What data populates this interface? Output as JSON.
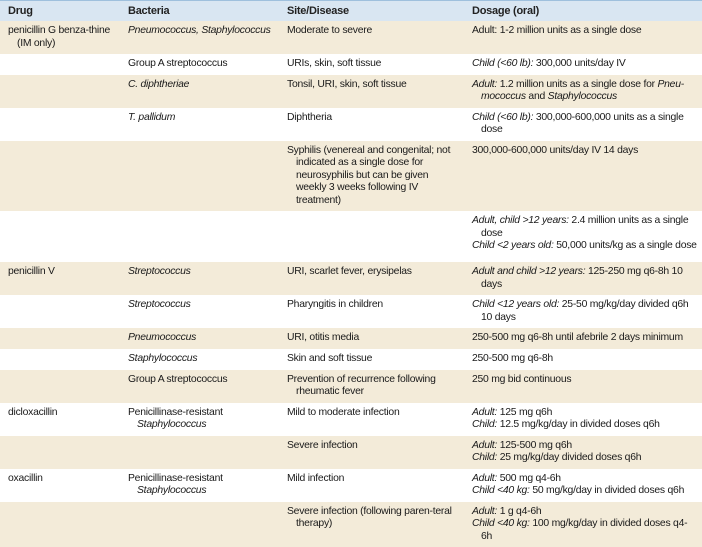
{
  "table": {
    "headers": [
      "Drug",
      "Bacteria",
      "Site/Disease",
      "Dosage (oral)"
    ],
    "colors": {
      "header_bg": "#d9e6f2",
      "shade_bg": "#f3ebd9"
    },
    "rows": [
      {
        "h": 33,
        "shade": true,
        "drug": [
          [
            {
              "t": "penicillin G benza-thine (IM only)"
            }
          ]
        ],
        "bacteria": [
          [
            {
              "i": "Pneumococcus, Staphylococcus"
            }
          ]
        ],
        "site": [
          [
            {
              "t": "Moderate to severe"
            }
          ]
        ],
        "dosage": [
          [
            {
              "t": "Adult: 1-2 million units as a single dose"
            }
          ]
        ]
      },
      {
        "h": 20,
        "shade": false,
        "drug": [],
        "bacteria": [
          [
            {
              "t": "Group A streptococcus"
            }
          ]
        ],
        "site": [
          [
            {
              "t": "URIs, skin, soft tissue"
            }
          ]
        ],
        "dosage": [
          [
            {
              "i": "Child (<60 lb):"
            },
            {
              "t": " 300,000 units/day IV"
            }
          ]
        ]
      },
      {
        "h": 31,
        "shade": true,
        "drug": [],
        "bacteria": [
          [
            {
              "i": "C. diphtheriae"
            }
          ]
        ],
        "site": [
          [
            {
              "t": "Tonsil, URI, skin, soft tissue"
            }
          ]
        ],
        "dosage": [
          [
            {
              "i": "Adult:"
            },
            {
              "t": " 1.2 million units as a single dose for "
            },
            {
              "i": "Pneu-mococcus"
            },
            {
              "t": " and "
            },
            {
              "i": "Staphylococcus"
            }
          ]
        ]
      },
      {
        "h": 33,
        "shade": false,
        "drug": [],
        "bacteria": [
          [
            {
              "i": "T. pallidum"
            }
          ]
        ],
        "site": [
          [
            {
              "t": "Diphtheria"
            }
          ]
        ],
        "dosage": [
          [
            {
              "i": "Child (<60 lb):"
            },
            {
              "t": " 300,000-600,000 units as a single dose"
            }
          ]
        ]
      },
      {
        "h": 70,
        "shade": true,
        "drug": [],
        "bacteria": [],
        "site": [
          [
            {
              "t": "Syphilis (venereal and congenital; not indicated as a single dose for neurosyphilis but can be given weekly 3 weeks following IV treatment)"
            }
          ]
        ],
        "dosage": [
          [
            {
              "t": "300,000-600,000 units/day IV 14 days"
            }
          ]
        ]
      },
      {
        "h": 51,
        "shade": false,
        "drug": [],
        "bacteria": [],
        "site": [],
        "dosage": [
          [
            {
              "i": "Adult, child >12 years:"
            },
            {
              "t": " 2.4 million units as a single dose"
            }
          ],
          [
            {
              "i": "Child <2 years old:"
            },
            {
              "t": " 50,000 units/kg as a single dose"
            }
          ]
        ]
      },
      {
        "h": 32,
        "shade": true,
        "drug": [
          [
            {
              "t": "penicillin V"
            }
          ]
        ],
        "bacteria": [
          [
            {
              "i": "Streptococcus"
            }
          ]
        ],
        "site": [
          [
            {
              "t": "URI, scarlet fever, erysipelas"
            }
          ]
        ],
        "dosage": [
          [
            {
              "i": "Adult and child >12 years:"
            },
            {
              "t": " 125-250 mg q6-8h 10 days"
            }
          ]
        ]
      },
      {
        "h": 25,
        "shade": false,
        "drug": [],
        "bacteria": [
          [
            {
              "i": "Streptococcus"
            }
          ]
        ],
        "site": [
          [
            {
              "t": "Pharyngitis in children"
            }
          ]
        ],
        "dosage": [
          [
            {
              "i": "Child <12 years old:"
            },
            {
              "t": " 25-50 mg/kg/day divided q6h 10 days"
            }
          ]
        ]
      },
      {
        "h": 21,
        "shade": true,
        "drug": [],
        "bacteria": [
          [
            {
              "i": "Pneumococcus"
            }
          ]
        ],
        "site": [
          [
            {
              "t": "URI, otitis media"
            }
          ]
        ],
        "dosage": [
          [
            {
              "t": "250-500 mg q6-8h until afebrile 2 days minimum"
            }
          ]
        ]
      },
      {
        "h": 19,
        "shade": false,
        "drug": [],
        "bacteria": [
          [
            {
              "i": "Staphylococcus"
            }
          ]
        ],
        "site": [
          [
            {
              "t": "Skin and soft tissue"
            }
          ]
        ],
        "dosage": [
          [
            {
              "t": "250-500 mg q6-8h"
            }
          ]
        ]
      },
      {
        "h": 30,
        "shade": true,
        "drug": [],
        "bacteria": [
          [
            {
              "t": "Group A streptococcus"
            }
          ]
        ],
        "site": [
          [
            {
              "t": "Prevention of recurrence following rheumatic fever"
            }
          ]
        ],
        "dosage": [
          [
            {
              "t": "250 mg bid continuous"
            }
          ]
        ]
      },
      {
        "h": 33,
        "shade": false,
        "drug": [
          [
            {
              "t": "dicloxacillin"
            }
          ]
        ],
        "bacteria": [
          [
            {
              "t": "Penicillinase-resistant "
            },
            {
              "i": "Staphylococcus"
            }
          ]
        ],
        "site": [
          [
            {
              "t": "Mild to moderate infection"
            }
          ]
        ],
        "dosage": [
          [
            {
              "i": "Adult:"
            },
            {
              "t": " 125 mg q6h"
            }
          ],
          [
            {
              "i": "Child:"
            },
            {
              "t": " 12.5 mg/kg/day in divided doses q6h"
            }
          ]
        ]
      },
      {
        "h": 33,
        "shade": true,
        "drug": [],
        "bacteria": [],
        "site": [
          [
            {
              "t": "Severe infection"
            }
          ]
        ],
        "dosage": [
          [
            {
              "i": "Adult:"
            },
            {
              "t": " 125-500 mg q6h"
            }
          ],
          [
            {
              "i": "Child:"
            },
            {
              "t": " 25 mg/kg/day divided doses q6h"
            }
          ]
        ]
      },
      {
        "h": 33,
        "shade": false,
        "drug": [
          [
            {
              "t": "oxacillin"
            }
          ]
        ],
        "bacteria": [
          [
            {
              "t": "Penicillinase-resistant "
            },
            {
              "i": "Staphylococcus"
            }
          ]
        ],
        "site": [
          [
            {
              "t": "Mild infection"
            }
          ]
        ],
        "dosage": [
          [
            {
              "i": "Adult:"
            },
            {
              "t": " 500 mg q4-6h"
            }
          ],
          [
            {
              "i": "Child <40 kg:"
            },
            {
              "t": " 50 mg/kg/day in divided doses q6h"
            }
          ]
        ]
      },
      {
        "h": 42,
        "shade": true,
        "drug": [],
        "bacteria": [],
        "site": [
          [
            {
              "t": "Severe infection (following paren-teral therapy)"
            }
          ]
        ],
        "dosage": [
          [
            {
              "i": "Adult:"
            },
            {
              "t": " 1 g q4-6h"
            }
          ],
          [
            {
              "i": "Child <40 kg:"
            },
            {
              "t": " 100 mg/kg/day in divided doses q4-6h"
            }
          ]
        ]
      }
    ]
  }
}
